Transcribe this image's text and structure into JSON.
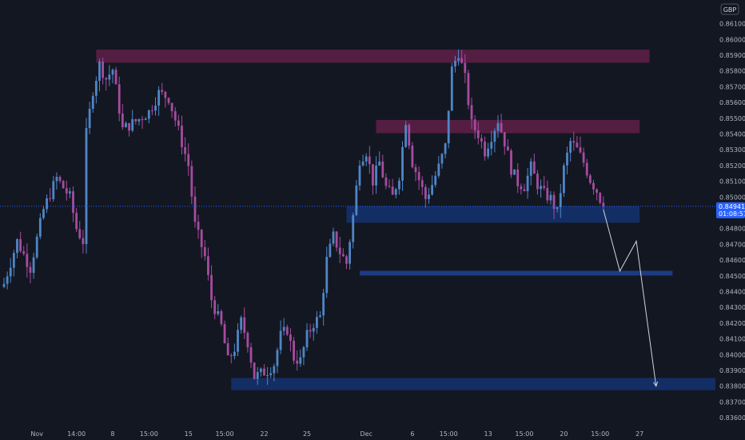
{
  "chart_data": {
    "type": "candlestick",
    "title": "",
    "currency_button": "GBP",
    "ylim": [
      0.8355,
      0.8625
    ],
    "y_ticks": [
      "0.86100",
      "0.86000",
      "0.85900",
      "0.85800",
      "0.85700",
      "0.85600",
      "0.85500",
      "0.85400",
      "0.85300",
      "0.85200",
      "0.85100",
      "0.85000",
      "0.84900",
      "0.84800",
      "0.84700",
      "0.84600",
      "0.84500",
      "0.84400",
      "0.84300",
      "0.84200",
      "0.84100",
      "0.84000",
      "0.83900",
      "0.83800",
      "0.83700",
      "0.83600"
    ],
    "x_ticks": [
      {
        "label": "Nov",
        "bar": 10
      },
      {
        "label": "14:00",
        "bar": 22
      },
      {
        "label": "8",
        "bar": 33
      },
      {
        "label": "15:00",
        "bar": 44
      },
      {
        "label": "15",
        "bar": 56
      },
      {
        "label": "15:00",
        "bar": 67
      },
      {
        "label": "22",
        "bar": 79
      },
      {
        "label": "25",
        "bar": 92
      },
      {
        "label": "Dec",
        "bar": 110
      },
      {
        "label": "6",
        "bar": 124
      },
      {
        "label": "15:00",
        "bar": 135
      },
      {
        "label": "13",
        "bar": 147
      },
      {
        "label": "15:00",
        "bar": 158
      },
      {
        "label": "20",
        "bar": 170
      },
      {
        "label": "15:00",
        "bar": 181
      },
      {
        "label": "27",
        "bar": 193
      }
    ],
    "price_path": [
      [
        0,
        0.8445
      ],
      [
        4,
        0.8472
      ],
      [
        8,
        0.8455
      ],
      [
        12,
        0.8492
      ],
      [
        16,
        0.8512
      ],
      [
        20,
        0.85
      ],
      [
        22,
        0.848
      ],
      [
        24,
        0.8472
      ],
      [
        25,
        0.854
      ],
      [
        27,
        0.8568
      ],
      [
        29,
        0.8584
      ],
      [
        31,
        0.8575
      ],
      [
        33,
        0.8581
      ],
      [
        36,
        0.8543
      ],
      [
        40,
        0.8548
      ],
      [
        44,
        0.8554
      ],
      [
        47,
        0.8566
      ],
      [
        50,
        0.8563
      ],
      [
        53,
        0.8542
      ],
      [
        56,
        0.852
      ],
      [
        58,
        0.8482
      ],
      [
        61,
        0.8462
      ],
      [
        63,
        0.8435
      ],
      [
        66,
        0.8418
      ],
      [
        68,
        0.8396
      ],
      [
        70,
        0.8404
      ],
      [
        72,
        0.8421
      ],
      [
        74,
        0.8408
      ],
      [
        76,
        0.8386
      ],
      [
        80,
        0.839
      ],
      [
        82,
        0.8394
      ],
      [
        84,
        0.8412
      ],
      [
        86,
        0.8416
      ],
      [
        88,
        0.8398
      ],
      [
        90,
        0.8396
      ],
      [
        92,
        0.8412
      ],
      [
        94,
        0.842
      ],
      [
        96,
        0.8424
      ],
      [
        98,
        0.846
      ],
      [
        100,
        0.8475
      ],
      [
        102,
        0.8465
      ],
      [
        104,
        0.8458
      ],
      [
        106,
        0.8488
      ],
      [
        108,
        0.8524
      ],
      [
        110,
        0.8529
      ],
      [
        112,
        0.851
      ],
      [
        114,
        0.8522
      ],
      [
        116,
        0.8506
      ],
      [
        118,
        0.85
      ],
      [
        120,
        0.8514
      ],
      [
        122,
        0.8549
      ],
      [
        124,
        0.8522
      ],
      [
        126,
        0.8511
      ],
      [
        128,
        0.8499
      ],
      [
        130,
        0.8508
      ],
      [
        132,
        0.8519
      ],
      [
        134,
        0.8532
      ],
      [
        136,
        0.8581
      ],
      [
        138,
        0.8592
      ],
      [
        140,
        0.8575
      ],
      [
        142,
        0.8546
      ],
      [
        144,
        0.854
      ],
      [
        146,
        0.8529
      ],
      [
        148,
        0.8539
      ],
      [
        150,
        0.8549
      ],
      [
        152,
        0.8535
      ],
      [
        154,
        0.8518
      ],
      [
        156,
        0.8509
      ],
      [
        158,
        0.8507
      ],
      [
        160,
        0.8519
      ],
      [
        162,
        0.8508
      ],
      [
        164,
        0.8502
      ],
      [
        166,
        0.8499
      ],
      [
        168,
        0.849
      ],
      [
        170,
        0.8518
      ],
      [
        172,
        0.8535
      ],
      [
        174,
        0.853
      ],
      [
        176,
        0.8522
      ],
      [
        178,
        0.8511
      ],
      [
        180,
        0.8504
      ],
      [
        182,
        0.8494
      ]
    ],
    "last_bar": 182,
    "zones": [
      {
        "kind": "resistance",
        "from_bar": 28,
        "to_bar": 196,
        "y_top": 0.85935,
        "y_bottom": 0.85852,
        "color": "#5a1f45"
      },
      {
        "kind": "resistance",
        "from_bar": 113,
        "to_bar": 193,
        "y_top": 0.85489,
        "y_bottom": 0.85405,
        "color": "#5a1f45"
      },
      {
        "kind": "support",
        "from_bar": 104,
        "to_bar": 193,
        "y_top": 0.84942,
        "y_bottom": 0.84837,
        "color": "#14316b"
      },
      {
        "kind": "support",
        "from_bar": 108,
        "to_bar": 203,
        "y_top": 0.84532,
        "y_bottom": 0.84502,
        "color": "#1e3f8a"
      },
      {
        "kind": "support",
        "from_bar": 69,
        "to_bar": 216,
        "y_top": 0.83852,
        "y_bottom": 0.83775,
        "color": "#14316b"
      }
    ],
    "projection_path": [
      {
        "bar": 182,
        "y": 0.8492
      },
      {
        "bar": 187,
        "y": 0.8453
      },
      {
        "bar": 192,
        "y": 0.8472
      },
      {
        "bar": 198,
        "y": 0.838
      }
    ],
    "current_price": {
      "value": 0.84941,
      "label": "0.84941",
      "countdown": "01:08:57",
      "color": "#2962ff"
    },
    "colors": {
      "up": "#4f86c6",
      "down": "#a64c9e",
      "background": "#131722",
      "text": "#b2b5be",
      "crosshair": "#363a45"
    }
  }
}
